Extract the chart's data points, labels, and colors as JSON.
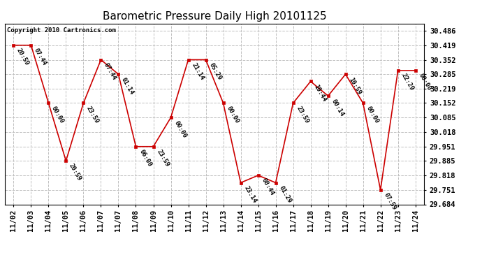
{
  "title": "Barometric Pressure Daily High 20101125",
  "copyright": "Copyright 2010 Cartronics.com",
  "x_labels": [
    "11/02",
    "11/03",
    "11/04",
    "11/05",
    "11/06",
    "11/07",
    "11/07",
    "11/08",
    "11/09",
    "11/10",
    "11/11",
    "11/12",
    "11/13",
    "11/14",
    "11/15",
    "11/16",
    "11/17",
    "11/18",
    "11/19",
    "11/20",
    "11/21",
    "11/22",
    "11/23",
    "11/24"
  ],
  "x_positions": [
    0,
    1,
    2,
    3,
    4,
    5,
    6,
    7,
    8,
    9,
    10,
    11,
    12,
    13,
    14,
    15,
    16,
    17,
    18,
    19,
    20,
    21,
    22,
    23
  ],
  "y_values": [
    30.419,
    30.419,
    30.152,
    29.885,
    30.152,
    30.352,
    30.285,
    29.951,
    29.951,
    30.085,
    30.352,
    30.352,
    30.152,
    29.784,
    29.818,
    29.784,
    30.152,
    30.252,
    30.185,
    30.285,
    30.152,
    29.751,
    30.302,
    30.302
  ],
  "time_labels": [
    "20:59",
    "07:44",
    "00:00",
    "20:59",
    "23:59",
    "07:44",
    "01:14",
    "06:00",
    "23:59",
    "00:00",
    "21:14",
    "05:29",
    "00:00",
    "23:14",
    "08:44",
    "01:29",
    "23:59",
    "10:44",
    "00:14",
    "10:59",
    "00:00",
    "07:59",
    "22:29",
    "00:00"
  ],
  "ylim_min": 29.684,
  "ylim_max": 30.519,
  "y_ticks": [
    29.684,
    29.751,
    29.818,
    29.885,
    29.951,
    30.018,
    30.085,
    30.152,
    30.219,
    30.285,
    30.352,
    30.419,
    30.486
  ],
  "line_color": "#cc0000",
  "marker_color": "#cc0000",
  "background_color": "#ffffff",
  "grid_color": "#c0c0c0",
  "title_fontsize": 11,
  "annotation_fontsize": 6.5,
  "tick_fontsize": 7.5,
  "copyright_fontsize": 6.5
}
